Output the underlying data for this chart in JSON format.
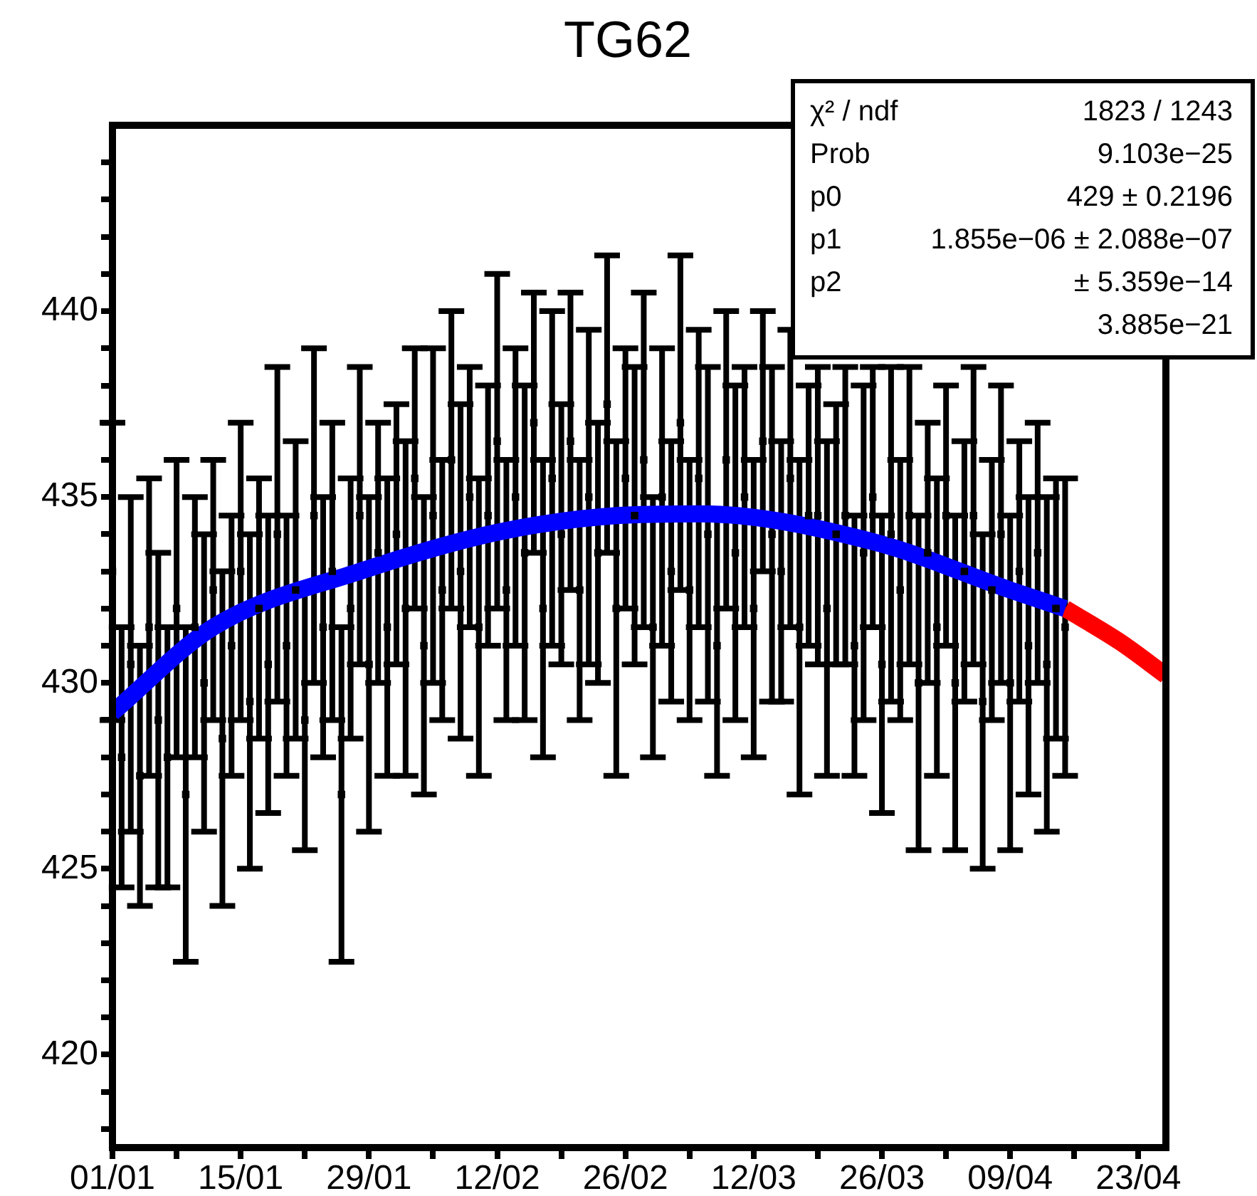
{
  "chart_data": {
    "type": "scatter",
    "title": "TG62",
    "xlim": [
      "--01-01",
      "--04-26"
    ],
    "xticks": [
      {
        "value": "--01-01",
        "label": "01/01"
      },
      {
        "value": "--01-08",
        "label": null
      },
      {
        "value": "--01-15",
        "label": "15/01"
      },
      {
        "value": "--01-22",
        "label": null
      },
      {
        "value": "--01-29",
        "label": "29/01"
      },
      {
        "value": "--02-05",
        "label": null
      },
      {
        "value": "--02-12",
        "label": "12/02"
      },
      {
        "value": "--02-19",
        "label": null
      },
      {
        "value": "--02-26",
        "label": "26/02"
      },
      {
        "value": "--03-05",
        "label": null
      },
      {
        "value": "--03-12",
        "label": "12/03"
      },
      {
        "value": "--03-19",
        "label": null
      },
      {
        "value": "--03-26",
        "label": "26/03"
      },
      {
        "value": "--04-02",
        "label": null
      },
      {
        "value": "--04-09",
        "label": "09/04"
      },
      {
        "value": "--04-16",
        "label": null
      },
      {
        "value": "--04-23",
        "label": "23/04"
      }
    ],
    "ylim": [
      417.5,
      445
    ],
    "yticks": [
      {
        "value": 418,
        "label": null
      },
      {
        "value": 419,
        "label": null
      },
      420,
      {
        "value": 421,
        "label": null
      },
      {
        "value": 422,
        "label": null
      },
      {
        "value": 423,
        "label": null
      },
      {
        "value": 424,
        "label": null
      },
      425,
      {
        "value": 426,
        "label": null
      },
      {
        "value": 427,
        "label": null
      },
      {
        "value": 428,
        "label": null
      },
      {
        "value": 429,
        "label": null
      },
      430,
      {
        "value": 431,
        "label": null
      },
      {
        "value": 432,
        "label": null
      },
      {
        "value": 433,
        "label": null
      },
      {
        "value": 434,
        "label": null
      },
      435,
      {
        "value": 436,
        "label": null
      },
      {
        "value": 437,
        "label": null
      },
      {
        "value": 438,
        "label": null
      },
      {
        "value": 439,
        "label": null
      },
      440,
      {
        "value": 441,
        "label": null
      },
      {
        "value": 442,
        "label": null
      },
      {
        "value": 443,
        "label": null
      },
      {
        "value": 444,
        "label": null
      }
    ],
    "legend": false,
    "annotations": [
      "χ² / ndf",
      "1823 / 1243",
      "Prob",
      "9.103e−25",
      "p0",
      "429 ± 0.2196",
      "p1",
      "1.855e−06 ± 2.088e−07",
      "p2",
      "± 5.359e−14",
      "3.885e−21"
    ],
    "series": [
      {
        "type": "scatter",
        "color": "#000000",
        "marker": "square",
        "x": [
          "--01-01",
          "--01-02",
          "--01-03",
          "--01-04",
          "--01-05",
          "--01-06",
          "--01-07",
          "--01-08",
          "--01-09",
          "--01-10",
          "--01-11",
          "--01-12",
          "--01-13",
          "--01-14",
          "--01-15",
          "--01-16",
          "--01-17",
          "--01-18",
          "--01-19",
          "--01-20",
          "--01-21",
          "--01-22",
          "--01-23",
          "--01-24",
          "--01-25",
          "--01-26",
          "--01-27",
          "--01-28",
          "--01-29",
          "--01-30",
          "--01-31",
          "--02-01",
          "--02-02",
          "--02-03",
          "--02-04",
          "--02-05",
          "--02-06",
          "--02-07",
          "--02-08",
          "--02-09",
          "--02-10",
          "--02-11",
          "--02-12",
          "--02-13",
          "--02-14",
          "--02-15",
          "--02-16",
          "--02-17",
          "--02-18",
          "--02-19",
          "--02-20",
          "--02-21",
          "--02-22",
          "--02-23",
          "--02-24",
          "--02-25",
          "--02-26",
          "--02-27",
          "--02-28",
          "--03-01",
          "--03-02",
          "--03-03",
          "--03-04",
          "--03-05",
          "--03-06",
          "--03-07",
          "--03-08",
          "--03-09",
          "--03-10",
          "--03-11",
          "--03-12",
          "--03-13",
          "--03-14",
          "--03-15",
          "--03-16",
          "--03-17",
          "--03-18",
          "--03-19",
          "--03-20",
          "--03-21",
          "--03-22",
          "--03-23",
          "--03-24",
          "--03-25",
          "--03-26",
          "--03-27",
          "--03-28",
          "--03-29",
          "--03-30",
          "--03-31",
          "--04-01",
          "--04-02",
          "--04-03",
          "--04-04",
          "--04-05",
          "--04-06",
          "--04-07",
          "--04-08",
          "--04-09",
          "--04-10",
          "--04-11",
          "--04-12",
          "--04-13",
          "--04-14",
          "--04-15"
        ],
        "values": [
          433.0,
          428.0,
          430.5,
          427.5,
          431.5,
          429.0,
          428.0,
          432.0,
          427.0,
          431.5,
          430.0,
          432.5,
          428.5,
          431.0,
          433.0,
          429.5,
          432.0,
          430.5,
          434.0,
          431.0,
          432.5,
          429.0,
          434.5,
          431.5,
          433.0,
          427.0,
          432.0,
          434.5,
          430.5,
          433.5,
          431.5,
          434.0,
          432.0,
          435.5,
          431.0,
          434.5,
          432.5,
          436.0,
          433.0,
          435.0,
          431.5,
          434.5,
          436.5,
          432.5,
          435.0,
          433.5,
          437.0,
          432.0,
          435.5,
          434.0,
          436.5,
          432.5,
          435.0,
          433.5,
          437.5,
          432.0,
          435.5,
          434.5,
          436.0,
          431.5,
          435.0,
          433.0,
          437.0,
          432.5,
          435.5,
          434.0,
          431.0,
          436.0,
          433.5,
          435.0,
          432.0,
          436.5,
          434.0,
          433.0,
          435.5,
          431.5,
          434.5,
          434.5,
          432.0,
          434.0,
          434.5,
          431.0,
          433.5,
          435.0,
          430.5,
          434.0,
          432.5,
          434.5,
          430.0,
          433.5,
          431.5,
          434.5,
          430.0,
          433.0,
          434.5,
          429.5,
          432.5,
          434.0,
          430.0,
          433.0,
          431.0,
          433.5,
          430.5,
          432.0,
          431.5
        ],
        "errors": [
          4,
          3.5,
          4.5,
          3.5,
          4,
          4.5,
          3.5,
          4,
          4.5,
          3.5,
          4,
          3.5,
          4.5,
          3.5,
          4,
          4.5,
          3.5,
          4,
          4.5,
          3.5,
          4,
          3.5,
          4.5,
          3.5,
          4,
          4.5,
          3.5,
          4,
          4.5,
          3.5,
          4,
          3.5,
          4.5,
          3.5,
          4,
          4.5,
          3.5,
          4,
          4.5,
          3.5,
          4,
          3.5,
          4.5,
          3.5,
          4,
          4.5,
          3.5,
          4,
          4.5,
          3.5,
          4,
          3.5,
          4.5,
          3.5,
          4,
          4.5,
          3.5,
          4,
          4.5,
          3.5,
          4,
          3.5,
          4.5,
          3.5,
          4,
          4.5,
          3.5,
          4,
          4.5,
          3.5,
          4,
          3.5,
          4.5,
          3.5,
          4,
          4.5,
          3.5,
          4,
          4.5,
          3.5,
          4,
          3.5,
          4.5,
          3.5,
          4,
          4.5,
          3.5,
          4,
          4.5,
          3.5,
          4,
          3.5,
          4.5,
          3.5,
          4,
          4.5,
          3.5,
          4,
          4.5,
          3.5,
          4,
          3.5,
          4.5,
          3.5,
          4
        ]
      },
      {
        "type": "line",
        "color": "#ff0000",
        "x": [
          "--04-15",
          "--04-21",
          "--04-26"
        ],
        "values": [
          432.0,
          431.1,
          430.2
        ]
      },
      {
        "type": "line",
        "color": "#0000ff",
        "x": [
          "--01-01",
          "--01-12",
          "--01-28",
          "--02-12",
          "--02-25",
          "--03-06",
          "--03-25",
          "--04-09",
          "--04-15"
        ],
        "values": [
          429.2,
          431.5,
          433.0,
          434.05,
          434.5,
          434.55,
          433.8,
          432.5,
          432.0
        ]
      }
    ]
  }
}
